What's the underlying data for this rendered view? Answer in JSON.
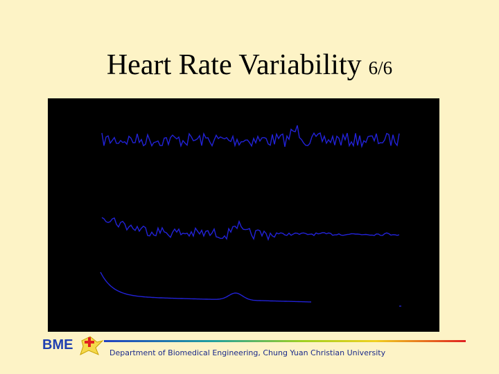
{
  "header": {
    "title": "Heart Rate Variability",
    "page": "6/6"
  },
  "footer": {
    "logo": "BME",
    "text": "Department of Biomedical Engineering, Chung Yuan Christian University"
  }
}
